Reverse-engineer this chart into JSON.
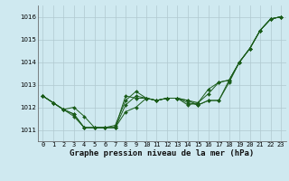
{
  "title": "Graphe pression niveau de la mer (hPa)",
  "background_color": "#cfe9f0",
  "grid_color": "#b0c8d0",
  "line_color": "#1a5c1a",
  "x_labels": [
    "0",
    "1",
    "2",
    "3",
    "4",
    "5",
    "6",
    "7",
    "8",
    "9",
    "10",
    "11",
    "12",
    "13",
    "14",
    "15",
    "16",
    "17",
    "18",
    "19",
    "20",
    "21",
    "22",
    "23"
  ],
  "ylim": [
    1010.5,
    1016.5
  ],
  "yticks": [
    1011,
    1012,
    1013,
    1014,
    1015,
    1016
  ],
  "series": [
    [
      1012.5,
      1012.2,
      1011.9,
      1011.7,
      1011.1,
      1011.1,
      1011.1,
      1011.1,
      1011.8,
      1012.0,
      1012.4,
      1012.3,
      1012.4,
      1012.4,
      1012.3,
      1012.1,
      1012.3,
      1012.3,
      1013.2,
      1014.0,
      1014.6,
      1015.4,
      1015.9,
      1016.0
    ],
    [
      1012.5,
      1012.2,
      1011.9,
      1011.7,
      1011.1,
      1011.1,
      1011.1,
      1011.1,
      1012.1,
      1012.5,
      1012.4,
      1012.3,
      1012.4,
      1012.4,
      1012.2,
      1012.1,
      1012.3,
      1012.3,
      1013.1,
      1014.0,
      1014.6,
      1015.4,
      1015.9,
      1016.0
    ],
    [
      1012.5,
      1012.2,
      1011.9,
      1012.0,
      1011.6,
      1011.1,
      1011.1,
      1011.2,
      1012.3,
      1012.7,
      1012.4,
      1012.3,
      1012.4,
      1012.4,
      1012.3,
      1012.2,
      1012.6,
      1013.1,
      1013.2,
      1014.0,
      1014.6,
      1015.4,
      1015.9,
      1016.0
    ],
    [
      1012.5,
      1012.2,
      1011.9,
      1011.6,
      1011.1,
      1011.1,
      1011.1,
      1011.1,
      1012.5,
      1012.4,
      1012.4,
      1012.3,
      1012.4,
      1012.4,
      1012.1,
      1012.2,
      1012.8,
      1013.1,
      1013.2,
      1014.0,
      1014.6,
      1015.4,
      1015.9,
      1016.0
    ]
  ],
  "tick_fontsize": 5.0,
  "label_fontsize": 6.5,
  "figsize": [
    3.2,
    2.0
  ],
  "dpi": 100
}
